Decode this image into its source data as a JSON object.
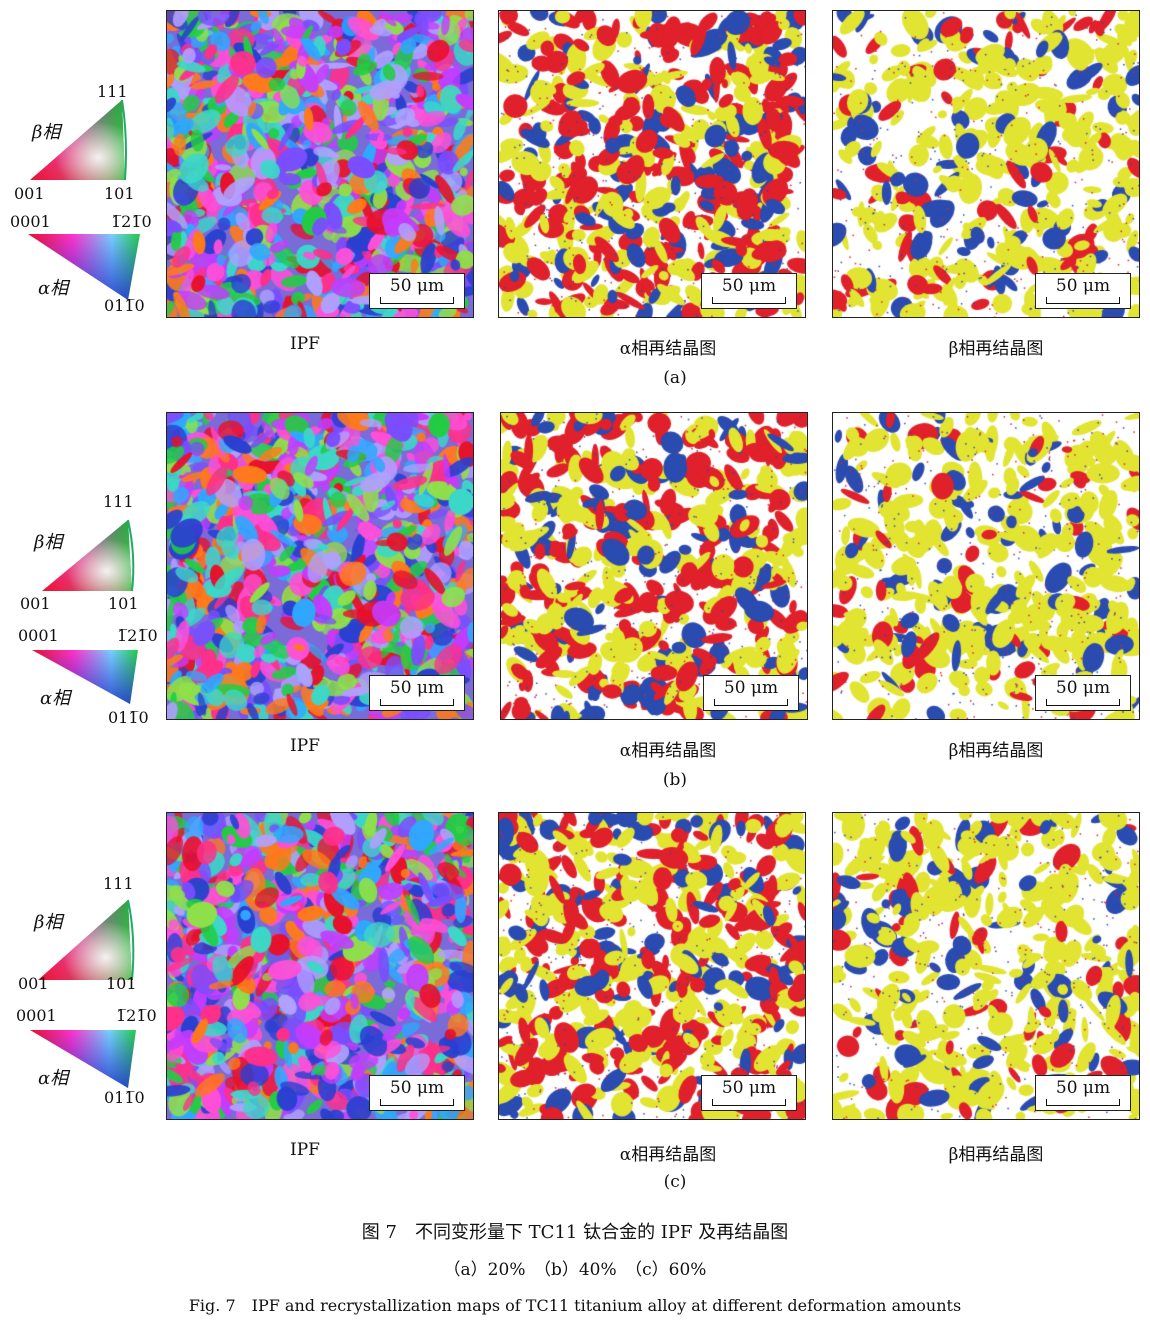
{
  "legend": {
    "beta_label": "β相",
    "alpha_label": "α相",
    "beta_corners": [
      "111",
      "001",
      "101"
    ],
    "alpha_corners": [
      "0001",
      "1̅21̅0",
      "011̅0"
    ]
  },
  "scale_bar_label": "50 μm",
  "panel_captions": [
    "IPF",
    "α相再结晶图",
    "β相再结晶图"
  ],
  "rows": [
    {
      "label": "(a)",
      "deformation": "20%"
    },
    {
      "label": "(b)",
      "deformation": "40%"
    },
    {
      "label": "(c)",
      "deformation": "60%"
    }
  ],
  "colors": {
    "recrystallized": "#e2e432",
    "substructured": "#e0202a",
    "deformed": "#2a4bb0"
  },
  "caption": {
    "cn_title": "图 7　不同变形量下 TC11 钛合金的 IPF 及再结晶图",
    "cn_sub": "（a）20%　（b）40%　（c）60%",
    "en_title": "Fig. 7　IPF and recrystallization maps of TC11 titanium alloy at different deformation amounts"
  }
}
